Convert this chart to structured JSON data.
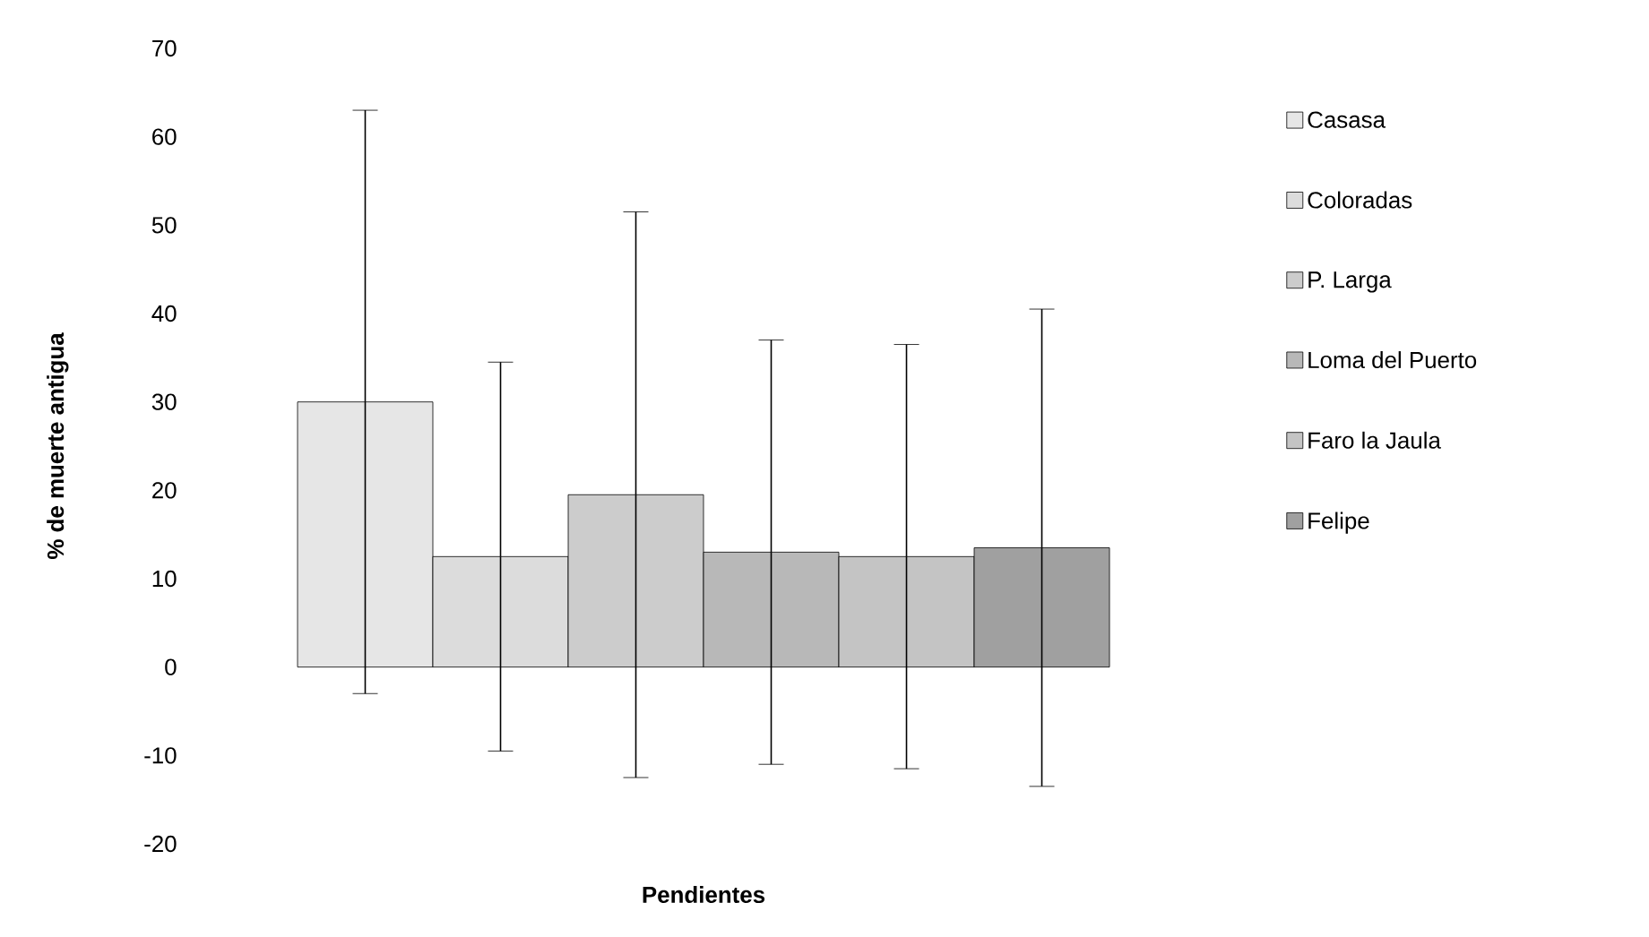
{
  "chart_data": {
    "type": "bar",
    "xlabel": "Pendientes",
    "ylabel": "% de muerte antigua",
    "categories": [
      null
    ],
    "series": [
      {
        "name": "Casasa",
        "color": "#e6e6e6",
        "values": [
          30
        ],
        "errors": [
          33
        ]
      },
      {
        "name": "Coloradas",
        "color": "#dcdcdc",
        "values": [
          12.5
        ],
        "errors": [
          22
        ]
      },
      {
        "name": "P. Larga",
        "color": "#cccccc",
        "values": [
          19.5
        ],
        "errors": [
          32
        ]
      },
      {
        "name": "Loma del Puerto",
        "color": "#b8b8b8",
        "values": [
          13
        ],
        "errors": [
          24
        ]
      },
      {
        "name": "Faro la Jaula",
        "color": "#c4c4c4",
        "values": [
          12.5
        ],
        "errors": [
          24
        ]
      },
      {
        "name": "Felipe",
        "color": "#a0a0a0",
        "values": [
          13.5
        ],
        "errors": [
          27
        ]
      }
    ],
    "ylim": [
      -20,
      70
    ],
    "yticks": [
      -20,
      -10,
      0,
      10,
      20,
      30,
      40,
      50,
      60,
      70
    ],
    "legend": "right",
    "grid": false
  }
}
